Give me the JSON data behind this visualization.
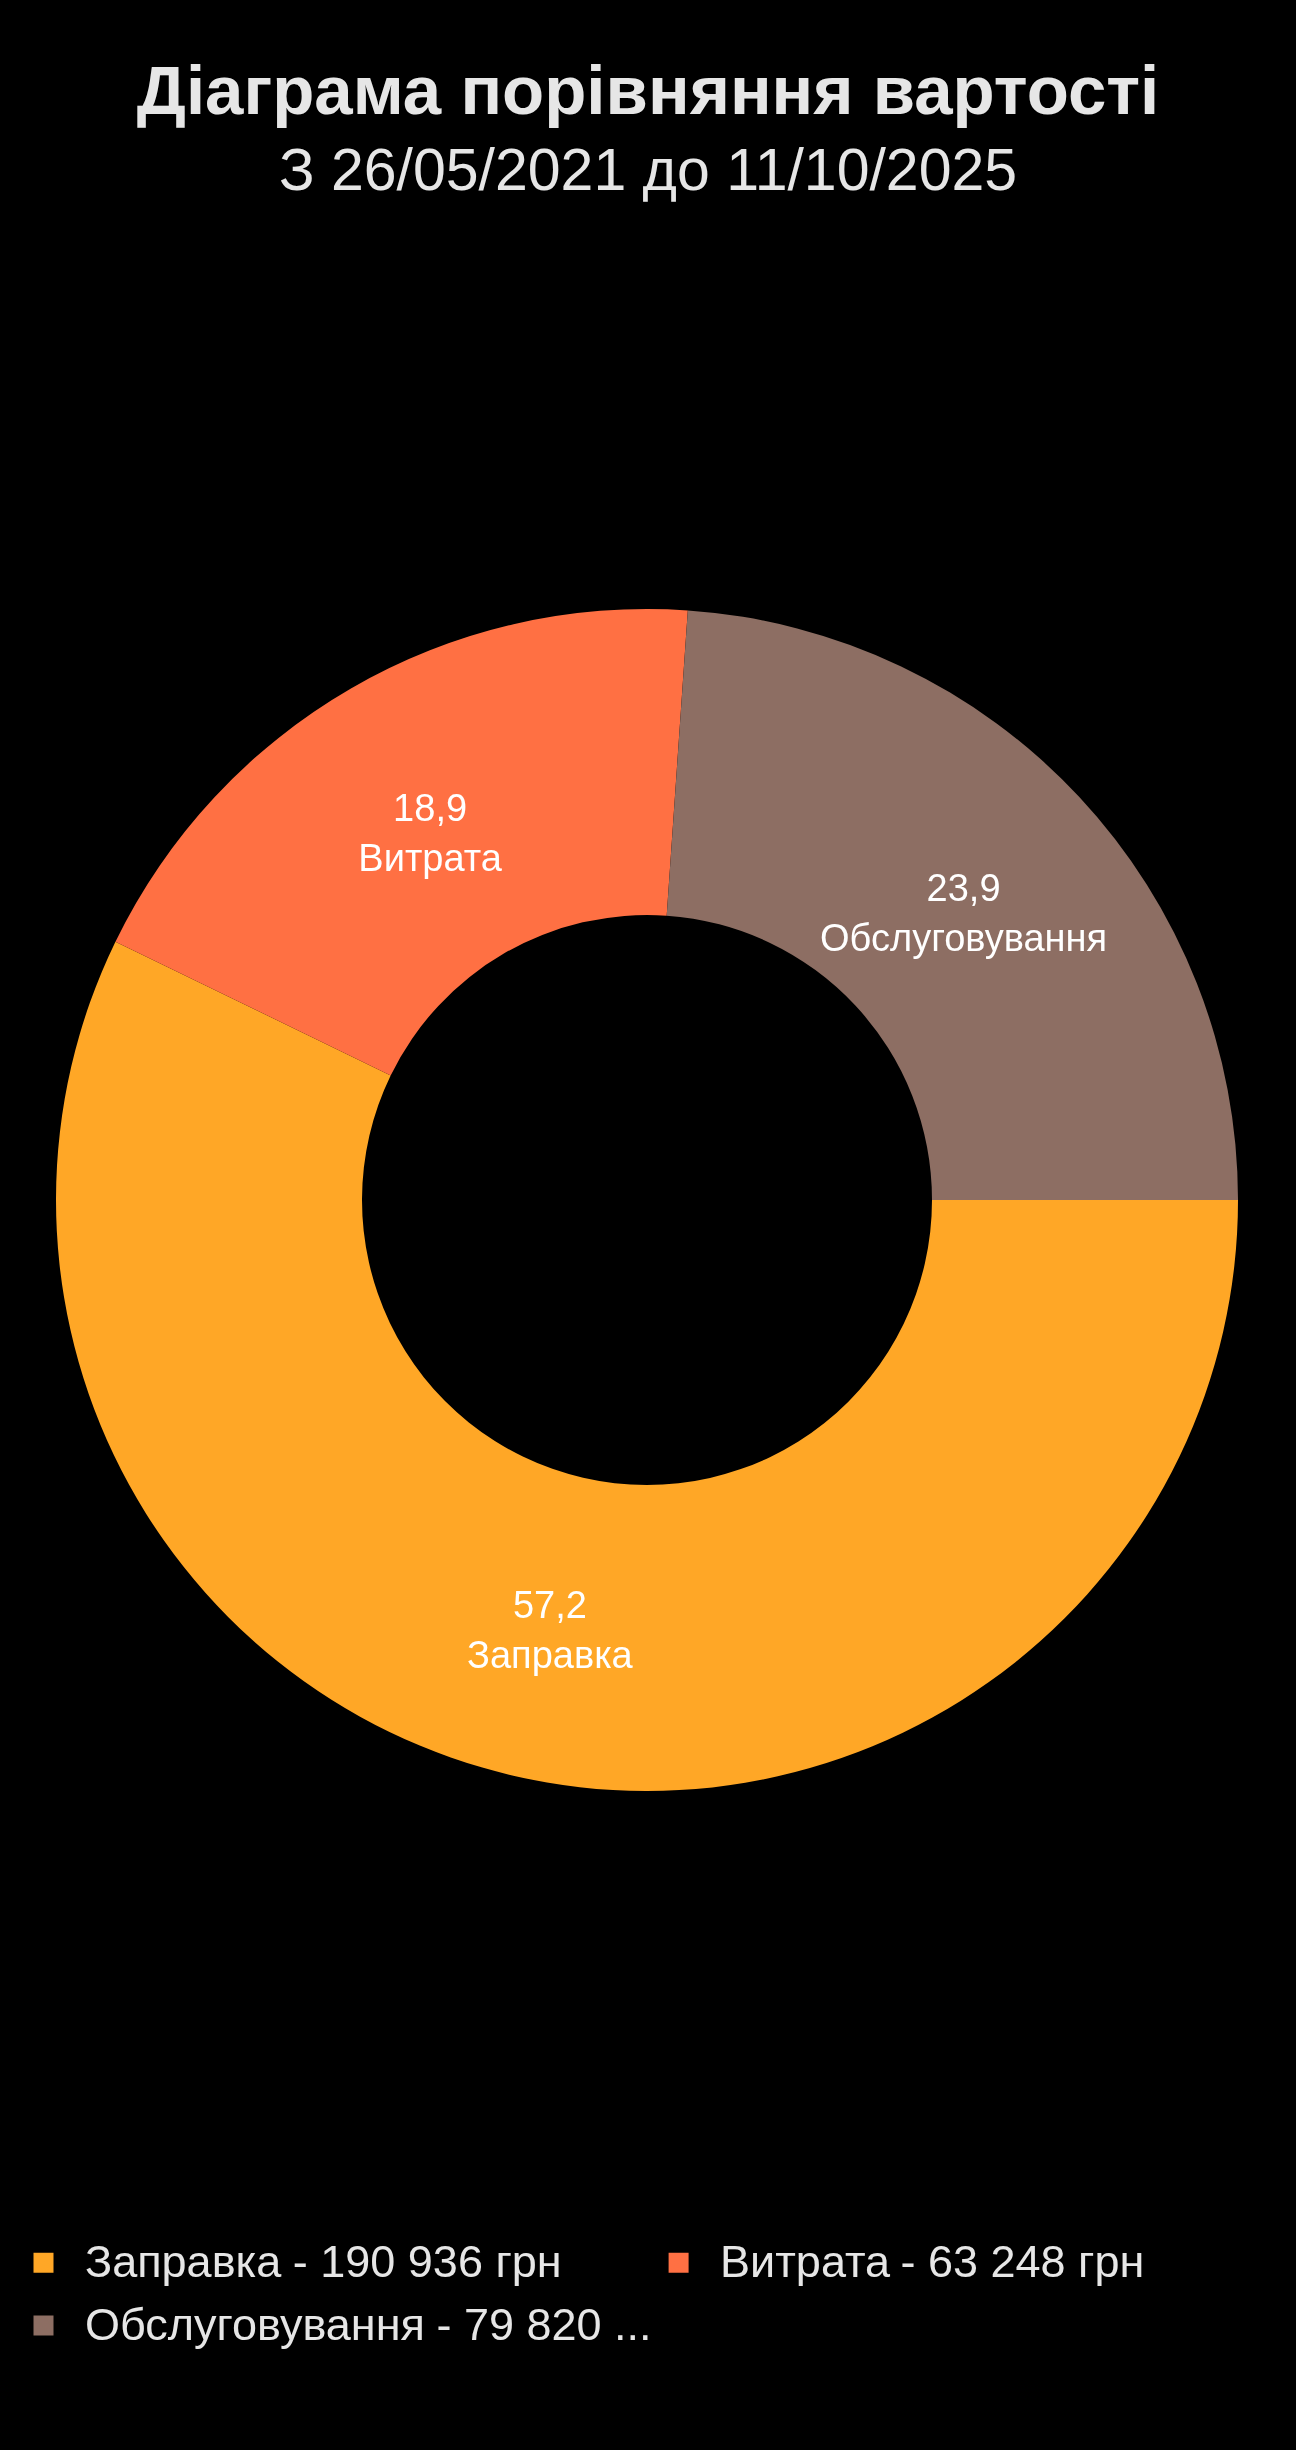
{
  "chart_data": {
    "type": "donut",
    "title": "Діаграма порівняння вартості",
    "subtitle": "З 26/05/2021 до 11/10/2025",
    "categories": [
      "Заправка",
      "Витрата",
      "Обслуговування"
    ],
    "values": [
      57.2,
      18.9,
      23.9
    ],
    "value_labels": [
      "57,2",
      "18,9",
      "23,9"
    ],
    "colors": [
      "#ffa726",
      "#ff7043",
      "#8d6e63"
    ],
    "legend": "bottom",
    "annotations": [
      "- 190 936 грн",
      "- 63 248 грн",
      "- 79 820 ..."
    ]
  }
}
